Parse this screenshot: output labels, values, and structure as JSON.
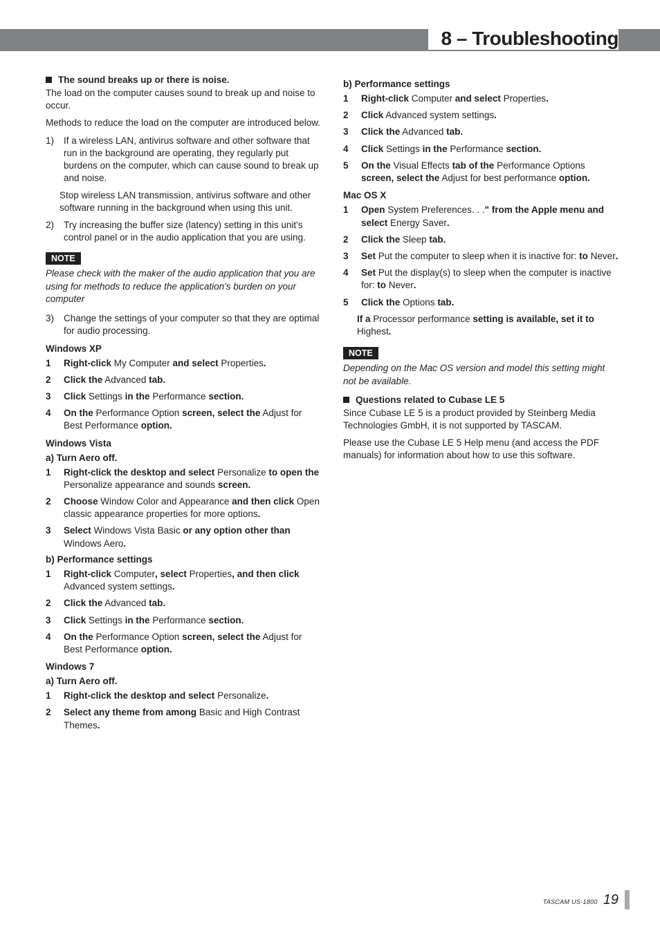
{
  "chapter_title": "8 – Troubleshooting",
  "left": {
    "s1_title": "The sound breaks up or there is noise.",
    "s1_p1": "The load on the computer causes sound to break up and noise to occur.",
    "s1_p2": "Methods to reduce the load on the computer are introduced below.",
    "s1_i1_n": "1)",
    "s1_i1_t": "If a wireless LAN, antivirus software and other software that run in the background are operating, they regularly put burdens on the computer, which can cause sound to break up and noise.",
    "s1_i1_t2": "Stop wireless LAN transmission, antivirus software and other software running in the background when using this unit.",
    "s1_i2_n": "2)",
    "s1_i2_t": "Try increasing the buffer size (latency) setting in this unit's control panel or in the audio application that you are using.",
    "note1_label": "NOTE",
    "note1_text": "Please check with the maker of the audio application that you are using for methods to reduce the application's burden on your computer",
    "s1_i3_n": "3)",
    "s1_i3_t": "Change the settings of your computer so that they are optimal for audio processing.",
    "winxp_head": "Windows XP",
    "winvista_head": "Windows Vista",
    "win7_head": "Windows 7",
    "aero_off": "a) Turn Aero off.",
    "perf_set": "b) Performance settings"
  },
  "right": {
    "macosx_head": "Mac OS X",
    "note2_label": "NOTE",
    "note2_text": "Depending on the Mac OS version and model this setting might not be available.",
    "s2_title": "Questions related to Cubase LE 5",
    "s2_p1": "Since Cubase LE 5 is a product provided by Steinberg Media Technologies GmbH, it is not supported by TASCAM.",
    "s2_p2": "Please use the Cubase LE 5 Help menu (and access the PDF manuals) for information about how to use this software."
  },
  "footer_model": "TASCAM US-1800",
  "page_num": "19"
}
